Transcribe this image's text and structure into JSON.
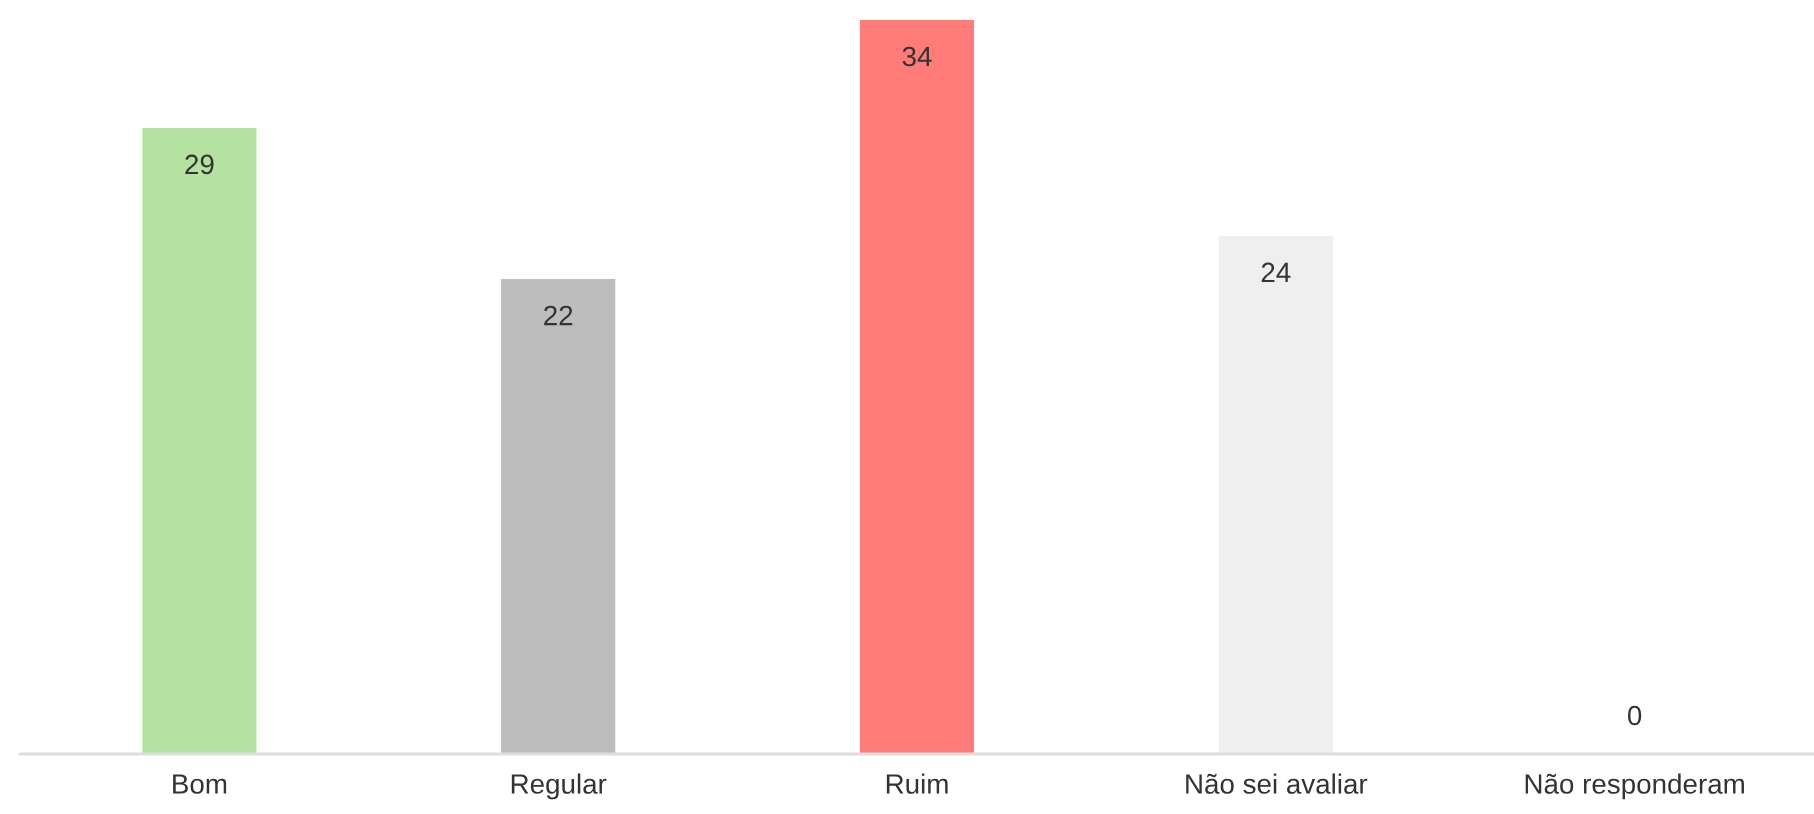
{
  "chart_data": {
    "type": "bar",
    "categories": [
      "Bom",
      "Regular",
      "Ruim",
      "Não sei avaliar",
      "Não responderam"
    ],
    "values": [
      29,
      22,
      34,
      24,
      0
    ],
    "colors": [
      "#b5e2a0",
      "#bdbdbd",
      "#ff7c78",
      "#efefef",
      null
    ],
    "ylim": [
      0,
      34
    ],
    "data_labels": true,
    "tick_labels": "x"
  }
}
